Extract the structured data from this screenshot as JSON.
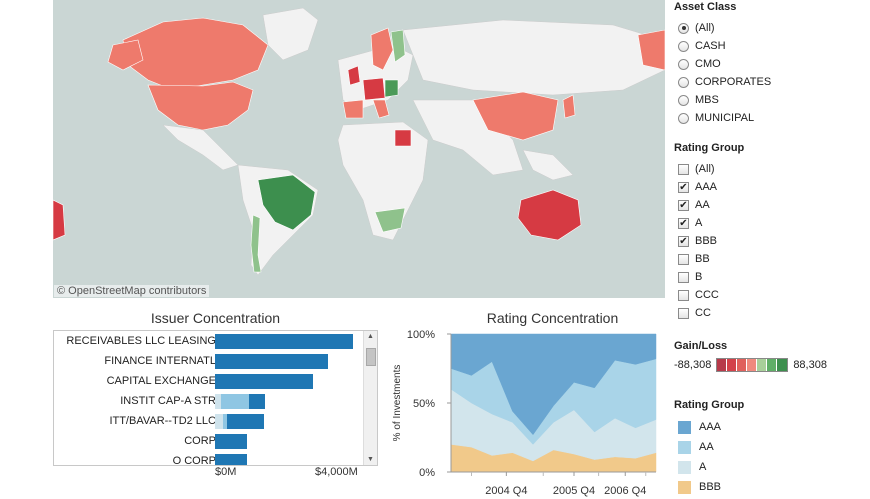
{
  "map": {
    "attribution": "© OpenStreetMap contributors",
    "ocean_color": "#cad6d4",
    "land_color": "#f2f2f2",
    "highlighted_color_low": "#d63a43",
    "highlighted_color_mid": "#ee7a6c",
    "highlighted_color_pos": "#4b9a58",
    "highlighted_color_pos_light": "#8fc28c"
  },
  "asset_class": {
    "title": "Asset Class",
    "options": [
      "(All)",
      "CASH",
      "CMO",
      "CORPORATES",
      "MBS",
      "MUNICIPAL"
    ],
    "selected": "(All)"
  },
  "rating_group_filter": {
    "title": "Rating Group",
    "options": [
      {
        "label": "(All)",
        "checked": false
      },
      {
        "label": "AAA",
        "checked": true
      },
      {
        "label": "AA",
        "checked": true
      },
      {
        "label": "A",
        "checked": true
      },
      {
        "label": "BBB",
        "checked": true
      },
      {
        "label": "BB",
        "checked": false
      },
      {
        "label": "B",
        "checked": false
      },
      {
        "label": "CCC",
        "checked": false
      },
      {
        "label": "CC",
        "checked": false
      }
    ]
  },
  "gain_loss": {
    "title": "Gain/Loss",
    "min_label": "-88,308",
    "max_label": "88,308",
    "colors": [
      "#b73a4a",
      "#d3414a",
      "#e0605c",
      "#ef8a7e",
      "#a8cf9a",
      "#5fae67",
      "#3d8f4e"
    ]
  },
  "rating_legend": {
    "title": "Rating Group",
    "items": [
      {
        "label": "AAA",
        "color": "#6aa6d1"
      },
      {
        "label": "AA",
        "color": "#a9d4e8"
      },
      {
        "label": "A",
        "color": "#d2e5ec"
      },
      {
        "label": "BBB",
        "color": "#f1c98a"
      }
    ]
  },
  "issuer_concentration": {
    "title": "Issuer Concentration",
    "axis_labels": [
      "$0M",
      "$4,000M"
    ],
    "rows": [
      {
        "label": "RECEIVABLES LLC LEASING",
        "segments": [
          {
            "value": 4100,
            "color": "#1f77b4"
          }
        ]
      },
      {
        "label": "FINANCE INTERNATL",
        "segments": [
          {
            "value": 3350,
            "color": "#1f77b4"
          }
        ]
      },
      {
        "label": "CAPITAL EXCHANGE",
        "segments": [
          {
            "value": 2900,
            "color": "#1f77b4"
          }
        ]
      },
      {
        "label": "INSTIT CAP-A STR",
        "segments": [
          {
            "value": 180,
            "color": "#cfe3ec"
          },
          {
            "value": 820,
            "color": "#8fc6e3"
          },
          {
            "value": 480,
            "color": "#1f77b4"
          }
        ]
      },
      {
        "label": "ITT/BAVAR--TD2 LLC",
        "segments": [
          {
            "value": 250,
            "color": "#cfe3ec"
          },
          {
            "value": 120,
            "color": "#8fc6e3"
          },
          {
            "value": 1100,
            "color": "#1f77b4"
          }
        ]
      },
      {
        "label": "CORP",
        "segments": [
          {
            "value": 950,
            "color": "#1f77b4"
          }
        ]
      },
      {
        "label": "O CORP",
        "segments": [
          {
            "value": 950,
            "color": "#1f77b4"
          }
        ]
      }
    ]
  },
  "chart_data": {
    "type": "area",
    "title": "Rating Concentration",
    "ylabel": "% of Investments",
    "yticks": [
      "0%",
      "50%",
      "100%"
    ],
    "xticks": [
      "2004 Q4",
      "2005 Q4",
      "2006 Q4"
    ],
    "ylim": [
      0,
      100
    ],
    "stacked": true,
    "x": [
      0,
      1,
      2,
      3,
      4,
      5,
      6,
      7,
      8,
      9,
      10
    ],
    "series": [
      {
        "name": "BBB",
        "color": "#f1c98a",
        "values": [
          20,
          18,
          12,
          14,
          8,
          16,
          13,
          9,
          11,
          10,
          14
        ]
      },
      {
        "name": "A",
        "color": "#d2e5ec",
        "values": [
          40,
          32,
          30,
          22,
          12,
          20,
          32,
          20,
          28,
          22,
          24
        ]
      },
      {
        "name": "AA",
        "color": "#a9d4e8",
        "values": [
          15,
          20,
          38,
          8,
          7,
          12,
          20,
          32,
          42,
          46,
          44
        ]
      },
      {
        "name": "AAA",
        "color": "#6aa6d1",
        "values": [
          25,
          30,
          20,
          56,
          73,
          52,
          35,
          39,
          19,
          22,
          18
        ]
      }
    ]
  }
}
